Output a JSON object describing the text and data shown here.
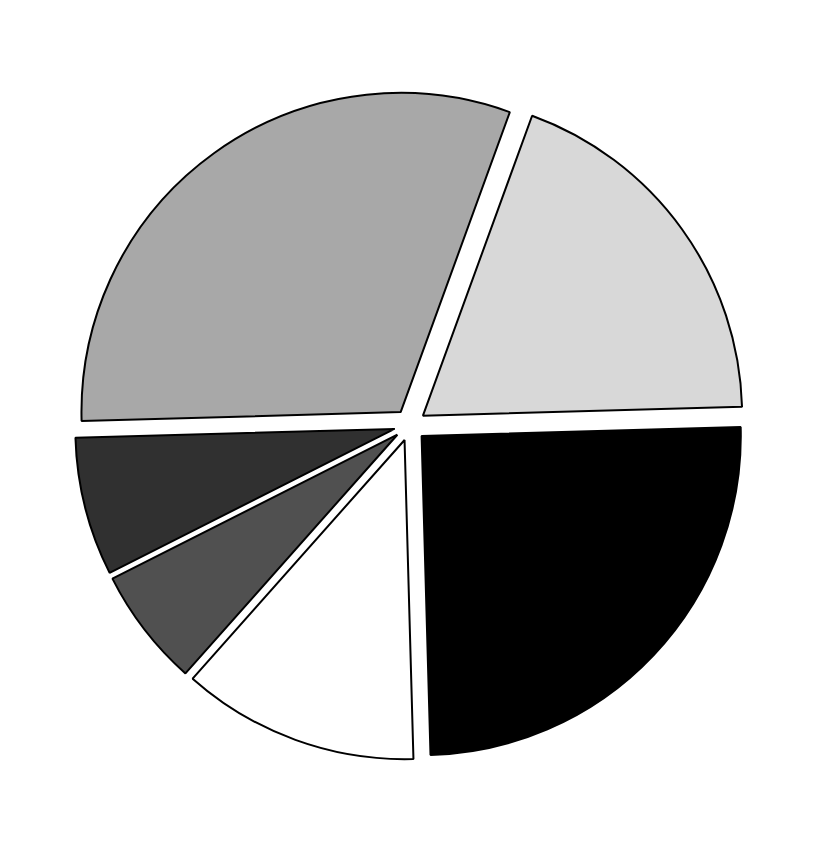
{
  "chart_data": {
    "type": "pie",
    "categories": [
      null,
      null,
      null,
      null,
      null,
      null
    ],
    "values": [
      19,
      25,
      12,
      6,
      7,
      31
    ],
    "colors": [
      "#d8d8d8",
      "#000000",
      "#ffffff",
      "#505050",
      "#303030",
      "#a8a8a8"
    ]
  }
}
